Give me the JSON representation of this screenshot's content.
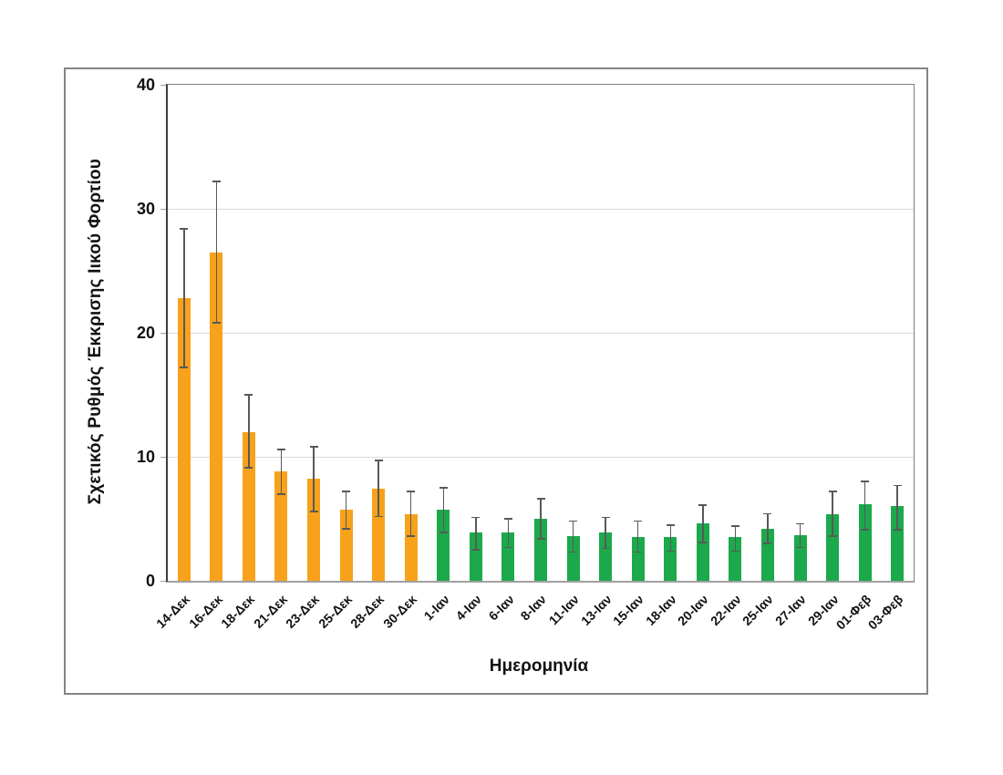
{
  "chart_data": {
    "type": "bar",
    "title": "",
    "xlabel": "Ημερομηνία",
    "ylabel": "Σχετικός Ρυθμός Έκκρισης Ιικού Φορτίου",
    "ylim": [
      0,
      40
    ],
    "yticks": [
      0,
      10,
      20,
      30,
      40
    ],
    "gridlines": [
      10,
      20,
      30
    ],
    "grid": "horizontal-light",
    "legend": null,
    "error_bars": "symmetric-caps",
    "error_bar_color": "#595959",
    "gridline_color": "#d9d9d9",
    "bar_groups": [
      {
        "name": "december",
        "color": "#F7A21A"
      },
      {
        "name": "january-february",
        "color": "#1BA94C"
      }
    ],
    "points": [
      {
        "label": "14-Δεκ",
        "value": 22.8,
        "err_low": 17.2,
        "err_high": 28.4,
        "group": 0
      },
      {
        "label": "16-Δεκ",
        "value": 26.5,
        "err_low": 20.8,
        "err_high": 32.2,
        "group": 0
      },
      {
        "label": "18-Δεκ",
        "value": 12.0,
        "err_low": 9.1,
        "err_high": 15.0,
        "group": 0
      },
      {
        "label": "21-Δεκ",
        "value": 8.8,
        "err_low": 7.0,
        "err_high": 10.6,
        "group": 0
      },
      {
        "label": "23-Δεκ",
        "value": 8.2,
        "err_low": 5.6,
        "err_high": 10.8,
        "group": 0
      },
      {
        "label": "25-Δεκ",
        "value": 5.7,
        "err_low": 4.2,
        "err_high": 7.2,
        "group": 0
      },
      {
        "label": "28-Δεκ",
        "value": 7.4,
        "err_low": 5.2,
        "err_high": 9.7,
        "group": 0
      },
      {
        "label": "30-Δεκ",
        "value": 5.4,
        "err_low": 3.6,
        "err_high": 7.2,
        "group": 0
      },
      {
        "label": "1-Ιαν",
        "value": 5.7,
        "err_low": 3.9,
        "err_high": 7.5,
        "group": 1
      },
      {
        "label": "4-Ιαν",
        "value": 3.9,
        "err_low": 2.5,
        "err_high": 5.1,
        "group": 1
      },
      {
        "label": "6-Ιαν",
        "value": 3.9,
        "err_low": 2.7,
        "err_high": 5.0,
        "group": 1
      },
      {
        "label": "8-Ιαν",
        "value": 5.0,
        "err_low": 3.4,
        "err_high": 6.6,
        "group": 1
      },
      {
        "label": "11-Ιαν",
        "value": 3.6,
        "err_low": 2.3,
        "err_high": 4.8,
        "group": 1
      },
      {
        "label": "13-Ιαν",
        "value": 3.9,
        "err_low": 2.6,
        "err_high": 5.1,
        "group": 1
      },
      {
        "label": "15-Ιαν",
        "value": 3.5,
        "err_low": 2.3,
        "err_high": 4.8,
        "group": 1
      },
      {
        "label": "18-Ιαν",
        "value": 3.5,
        "err_low": 2.4,
        "err_high": 4.5,
        "group": 1
      },
      {
        "label": "20-Ιαν",
        "value": 4.6,
        "err_low": 3.1,
        "err_high": 6.1,
        "group": 1
      },
      {
        "label": "22-Ιαν",
        "value": 3.5,
        "err_low": 2.4,
        "err_high": 4.4,
        "group": 1
      },
      {
        "label": "25-Ιαν",
        "value": 4.2,
        "err_low": 3.0,
        "err_high": 5.4,
        "group": 1
      },
      {
        "label": "27-Ιαν",
        "value": 3.7,
        "err_low": 2.7,
        "err_high": 4.6,
        "group": 1
      },
      {
        "label": "29-Ιαν",
        "value": 5.4,
        "err_low": 3.6,
        "err_high": 7.2,
        "group": 1
      },
      {
        "label": "01-Φεβ",
        "value": 6.2,
        "err_low": 4.1,
        "err_high": 8.0,
        "group": 1
      },
      {
        "label": "03-Φεβ",
        "value": 6.0,
        "err_low": 4.1,
        "err_high": 7.7,
        "group": 1
      }
    ]
  }
}
